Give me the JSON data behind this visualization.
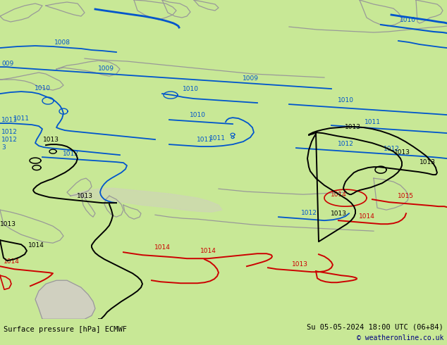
{
  "title_left": "Surface pressure [hPa] ECMWF",
  "title_right": "Su 05-05-2024 18:00 UTC (06+84)",
  "copyright": "© weatheronline.co.uk",
  "bg_color": "#c8e896",
  "fig_width": 6.34,
  "fig_height": 4.9,
  "dpi": 100
}
